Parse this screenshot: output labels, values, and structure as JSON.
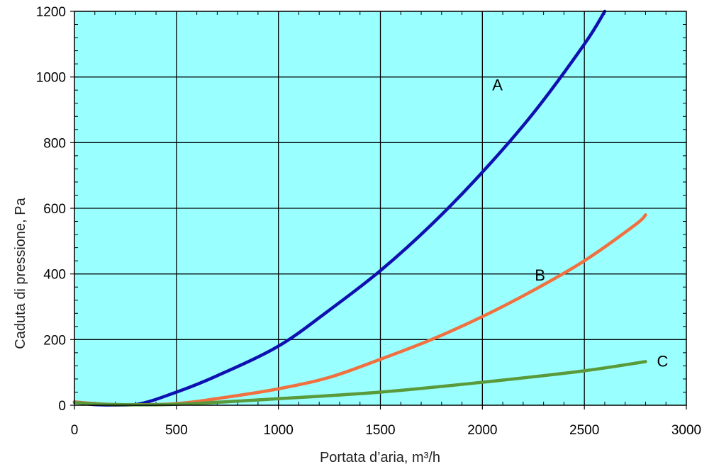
{
  "chart_data": {
    "type": "line",
    "title": "",
    "xlabel": "Portata d’aria, m³/h",
    "ylabel": "Caduta di pressione, Pa",
    "xlim": [
      0,
      3000
    ],
    "ylim": [
      0,
      1200
    ],
    "xticks": [
      0,
      500,
      1000,
      1500,
      2000,
      2500,
      3000
    ],
    "yticks": [
      0,
      200,
      400,
      600,
      800,
      1000,
      1200
    ],
    "grid": true,
    "plot_background": "#99FFFF",
    "series": [
      {
        "name": "A",
        "color": "#1010B0",
        "x": [
          0,
          100,
          300,
          500,
          700,
          1000,
          1250,
          1500,
          1750,
          2000,
          2250,
          2500,
          2600
        ],
        "y": [
          10,
          2,
          2,
          40,
          90,
          180,
          290,
          410,
          550,
          710,
          890,
          1100,
          1200
        ]
      },
      {
        "name": "B",
        "color": "#F07040",
        "x": [
          0,
          200,
          500,
          750,
          1000,
          1250,
          1500,
          1750,
          2000,
          2250,
          2500,
          2750,
          2800
        ],
        "y": [
          10,
          2,
          5,
          25,
          50,
          85,
          140,
          200,
          270,
          350,
          440,
          550,
          580
        ]
      },
      {
        "name": "C",
        "color": "#5A9A3A",
        "x": [
          0,
          200,
          500,
          1000,
          1500,
          2000,
          2500,
          2800
        ],
        "y": [
          8,
          2,
          3,
          20,
          40,
          70,
          105,
          133
        ]
      }
    ]
  }
}
